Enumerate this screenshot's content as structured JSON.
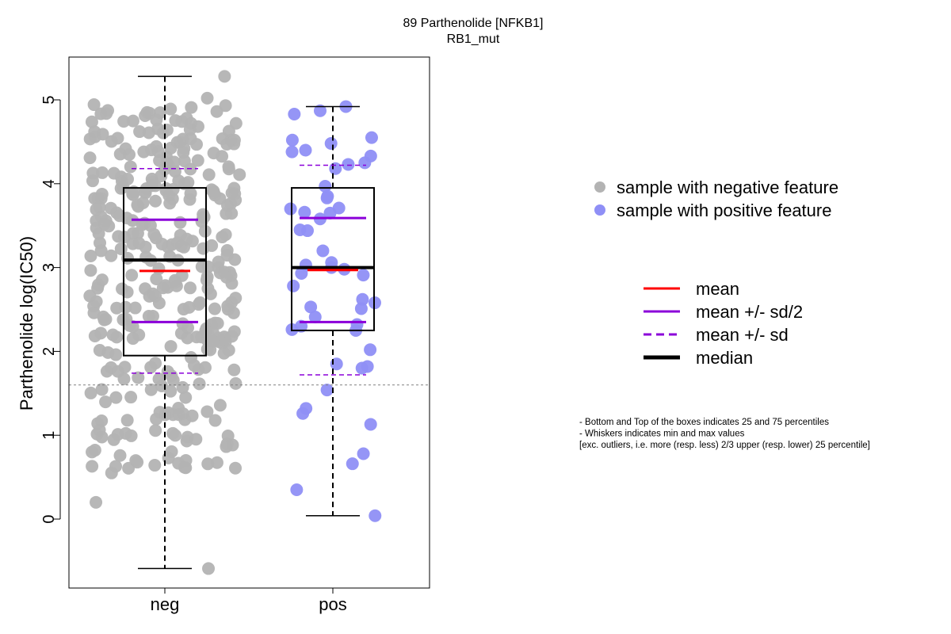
{
  "chart_data": {
    "type": "scatter",
    "title": "89 Parthenolide [NFKB1]",
    "subtitle": "RB1_mut",
    "ylabel": "Parthenolide log(IC50)",
    "xlabel": "",
    "categories": [
      "neg",
      "pos"
    ],
    "ylim": [
      -0.8,
      5.5
    ],
    "yticks": [
      0,
      1,
      2,
      3,
      4,
      5
    ],
    "grid": false,
    "reference_line_y": 1.6,
    "colors": {
      "neg_points": "#b3b3b3",
      "pos_points": "#8f8ff6",
      "mean": "#ff0000",
      "sd": "#8b00d9",
      "median": "#000000",
      "reference": "#808080"
    },
    "groups": [
      {
        "category": "neg",
        "q1": 1.95,
        "median": 3.09,
        "q3": 3.95,
        "whisker_min": -0.59,
        "whisker_max": 5.28,
        "mean": 2.96,
        "mean_minus_half_sd": 2.35,
        "mean_plus_half_sd": 3.57,
        "mean_minus_sd": 1.74,
        "mean_plus_sd": 4.18
      },
      {
        "category": "pos",
        "q1": 2.25,
        "median": 3.0,
        "q3": 3.95,
        "whisker_min": 0.04,
        "whisker_max": 4.92,
        "mean": 2.97,
        "mean_minus_half_sd": 2.35,
        "mean_plus_half_sd": 3.59,
        "mean_minus_sd": 1.72,
        "mean_plus_sd": 4.22,
        "points": [
          4.92,
          4.87,
          4.83,
          4.55,
          4.52,
          4.48,
          4.4,
          4.38,
          4.33,
          4.25,
          4.23,
          4.18,
          3.97,
          3.85,
          3.83,
          3.71,
          3.7,
          3.66,
          3.65,
          3.58,
          3.45,
          3.44,
          3.2,
          3.06,
          3.03,
          3.0,
          2.98,
          2.93,
          2.91,
          2.78,
          2.62,
          2.58,
          2.53,
          2.51,
          2.41,
          2.32,
          2.3,
          2.26,
          2.25,
          2.02,
          1.85,
          1.82,
          1.8,
          1.54,
          1.32,
          1.26,
          1.13,
          0.78,
          0.66,
          0.35,
          0.04
        ]
      }
    ],
    "legend_points": [
      {
        "label": "sample with negative feature",
        "color": "#b3b3b3"
      },
      {
        "label": "sample with positive feature",
        "color": "#8f8ff6"
      }
    ],
    "legend_lines": [
      {
        "label": "mean",
        "color": "#ff0000",
        "style": "solid"
      },
      {
        "label": "mean +/- sd/2",
        "color": "#8b00d9",
        "style": "solid"
      },
      {
        "label": "mean +/- sd",
        "color": "#8b00d9",
        "style": "dashed"
      },
      {
        "label": "median",
        "color": "#000000",
        "style": "solid-thick"
      }
    ],
    "notes": [
      "- Bottom and Top of the boxes indicates 25 and 75 percentiles",
      "- Whiskers indicates min and max values",
      "[exc. outliers, i.e. more (resp. less) 2/3 upper (resp. lower) 25 percentile]"
    ]
  }
}
